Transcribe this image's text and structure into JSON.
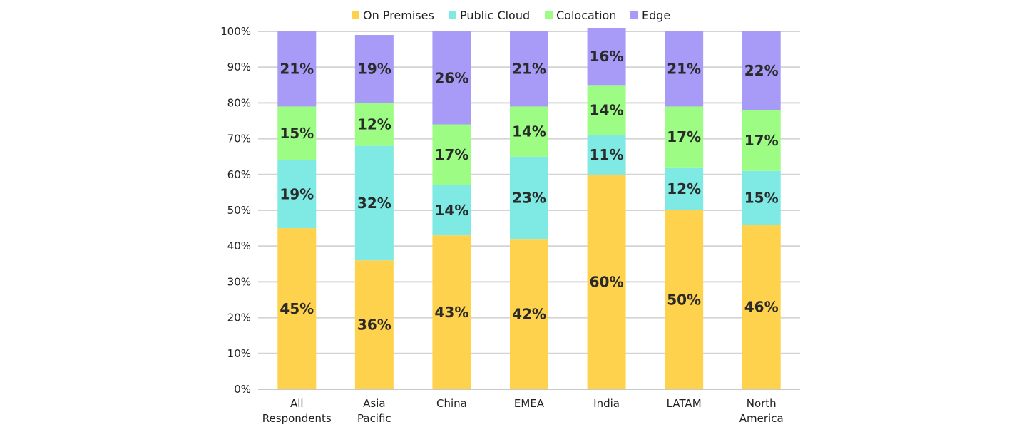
{
  "chart_data": {
    "type": "bar",
    "stacked": true,
    "categories": [
      [
        "All",
        "Respondents"
      ],
      [
        "Asia",
        "Pacific"
      ],
      [
        "China"
      ],
      [
        "EMEA"
      ],
      [
        "India"
      ],
      [
        "LATAM"
      ],
      [
        "North",
        "America"
      ]
    ],
    "series": [
      {
        "name": "On Premises",
        "color": "#ffd24d",
        "values": [
          45,
          36,
          43,
          42,
          60,
          50,
          46
        ]
      },
      {
        "name": "Public Cloud",
        "color": "#7fe9e4",
        "values": [
          19,
          32,
          14,
          23,
          11,
          12,
          15
        ]
      },
      {
        "name": "Colocation",
        "color": "#9cfc84",
        "values": [
          15,
          12,
          17,
          14,
          14,
          17,
          17
        ]
      },
      {
        "name": "Edge",
        "color": "#a79bf7",
        "values": [
          21,
          19,
          26,
          21,
          16,
          21,
          22
        ]
      }
    ],
    "data_labels": [
      [
        "45%",
        "36%",
        "43%",
        "42%",
        "60%",
        "50%",
        "46%"
      ],
      [
        "19%",
        "32%",
        "14%",
        "23%",
        "11%",
        "12%",
        "15%"
      ],
      [
        "15%",
        "12%",
        "17%",
        "14%",
        "14%",
        "17%",
        "17%"
      ],
      [
        "21%",
        "19%",
        "26%",
        "21%",
        "16%",
        "21%",
        "22%"
      ]
    ],
    "y_ticks": [
      "0%",
      "10%",
      "20%",
      "30%",
      "40%",
      "50%",
      "60%",
      "70%",
      "80%",
      "90%",
      "100%"
    ],
    "ylim": [
      0,
      100
    ],
    "grid": true,
    "legend_position": "top-center",
    "title": "",
    "xlabel": "",
    "ylabel": ""
  }
}
